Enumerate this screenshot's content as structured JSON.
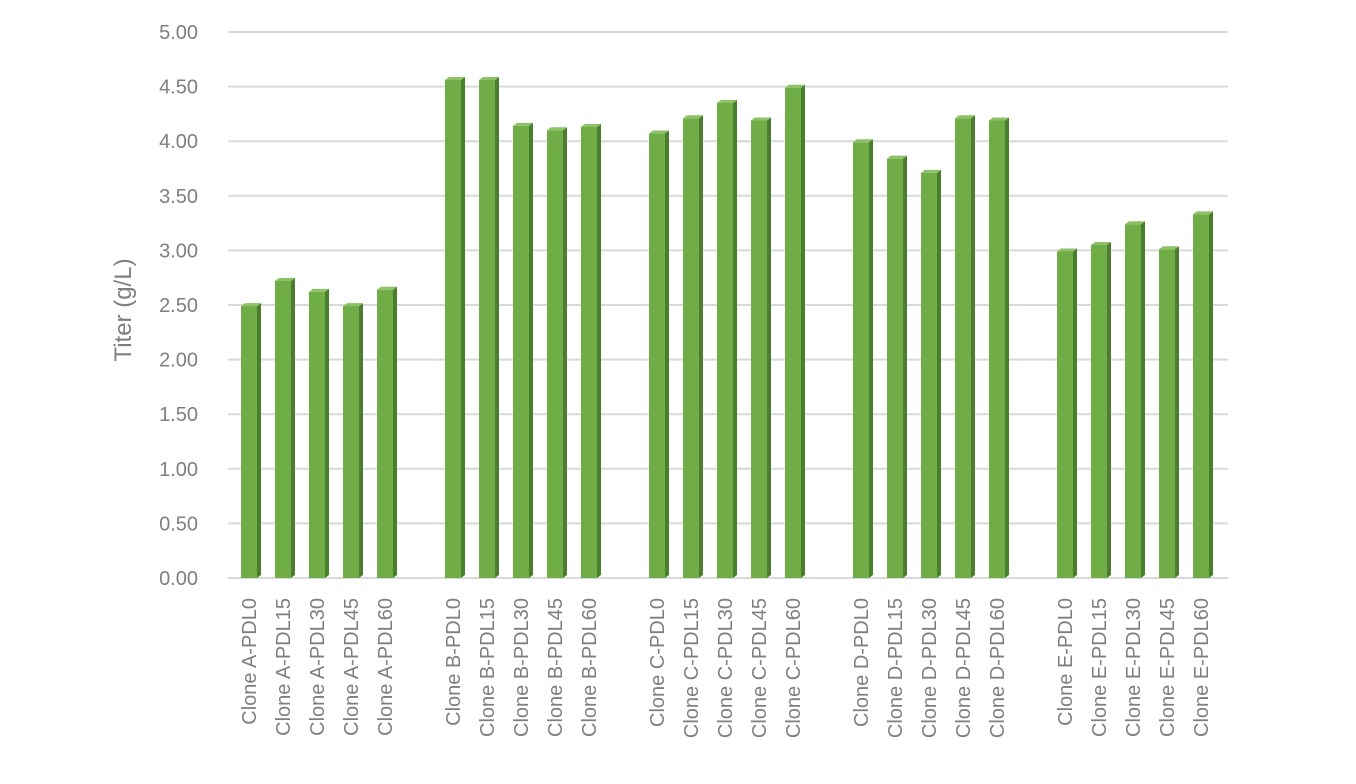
{
  "chart_data": {
    "type": "bar",
    "title": "",
    "xlabel": "",
    "ylabel": "Titer (g/L)",
    "ylim": [
      0,
      5
    ],
    "yticks": [
      "0.00",
      "0.50",
      "1.00",
      "1.50",
      "2.00",
      "2.50",
      "3.00",
      "3.50",
      "4.00",
      "4.50",
      "5.00"
    ],
    "grid": true,
    "legend": "none",
    "bar_color": "#70ad47",
    "bar_side_color": "#4b7d2f",
    "groups": [
      {
        "categories": [
          "Clone A-PDL0",
          "Clone A-PDL15",
          "Clone A-PDL30",
          "Clone A-PDL45",
          "Clone A-PDL60"
        ],
        "values": [
          2.49,
          2.72,
          2.62,
          2.49,
          2.64
        ]
      },
      {
        "categories": [
          "Clone B-PDL0",
          "Clone B-PDL15",
          "Clone B-PDL30",
          "Clone B-PDL45",
          "Clone B-PDL60"
        ],
        "values": [
          4.56,
          4.56,
          4.14,
          4.1,
          4.13
        ]
      },
      {
        "categories": [
          "Clone C-PDL0",
          "Clone C-PDL15",
          "Clone C-PDL30",
          "Clone C-PDL45",
          "Clone C-PDL60"
        ],
        "values": [
          4.07,
          4.21,
          4.35,
          4.19,
          4.49
        ]
      },
      {
        "categories": [
          "Clone D-PDL0",
          "Clone D-PDL15",
          "Clone D-PDL30",
          "Clone D-PDL45",
          "Clone D-PDL60"
        ],
        "values": [
          3.99,
          3.84,
          3.71,
          4.21,
          4.19
        ]
      },
      {
        "categories": [
          "Clone E-PDL0",
          "Clone E-PDL15",
          "Clone E-PDL30",
          "Clone E-PDL45",
          "Clone E-PDL60"
        ],
        "values": [
          2.99,
          3.05,
          3.24,
          3.01,
          3.33
        ]
      }
    ]
  }
}
